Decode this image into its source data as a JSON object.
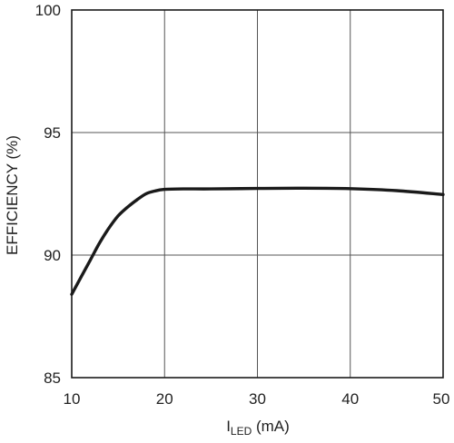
{
  "chart_data": {
    "type": "line",
    "title": "",
    "xlabel": "I",
    "xlabel_subscript": "LED",
    "xlabel_unit": " (mA)",
    "ylabel": "EFFICIENCY (%)",
    "xlim": [
      10,
      50
    ],
    "ylim": [
      85,
      100
    ],
    "xticks": [
      "10",
      "20",
      "30",
      "40",
      "50"
    ],
    "yticks": [
      "85",
      "90",
      "95",
      "100"
    ],
    "grid": true,
    "series": [
      {
        "name": "",
        "x": [
          10,
          11,
          12,
          13,
          14,
          15,
          16,
          17,
          18,
          19,
          20,
          22,
          25,
          30,
          35,
          40,
          45,
          50
        ],
        "y": [
          88.4,
          89.1,
          89.8,
          90.5,
          91.1,
          91.6,
          91.95,
          92.25,
          92.5,
          92.62,
          92.68,
          92.7,
          92.7,
          92.72,
          92.73,
          92.71,
          92.63,
          92.47
        ]
      }
    ],
    "line_color": "#1a1a1a",
    "grid_color": "#555555"
  }
}
